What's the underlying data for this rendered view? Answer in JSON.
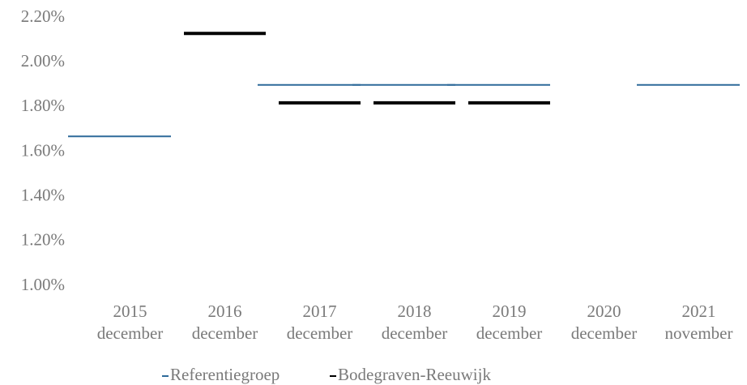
{
  "chart_data": {
    "type": "line",
    "categories": [
      "2015 december",
      "2016 december",
      "2017 december",
      "2018 december",
      "2019 december",
      "2020 december",
      "2021 november"
    ],
    "series": [
      {
        "name": "Referentiegroep",
        "color": "#2e6a9a",
        "values": [
          1.67,
          null,
          1.9,
          1.9,
          1.9,
          null,
          1.9
        ]
      },
      {
        "name": "Bodegraven-Reeuwijk",
        "color": "#000000",
        "values": [
          null,
          2.13,
          1.82,
          1.82,
          1.82,
          null,
          null
        ]
      }
    ],
    "ylim": [
      1.0,
      2.2
    ],
    "yticks": [
      {
        "value": 1.0,
        "label": "1.00%"
      },
      {
        "value": 1.2,
        "label": "1.20%"
      },
      {
        "value": 1.4,
        "label": "1.40%"
      },
      {
        "value": 1.6,
        "label": "1.60%"
      },
      {
        "value": 1.8,
        "label": "1.80%"
      },
      {
        "value": 2.0,
        "label": "2.00%"
      },
      {
        "value": 2.2,
        "label": "2.20%"
      }
    ],
    "grid": false,
    "legend": "bottom"
  }
}
